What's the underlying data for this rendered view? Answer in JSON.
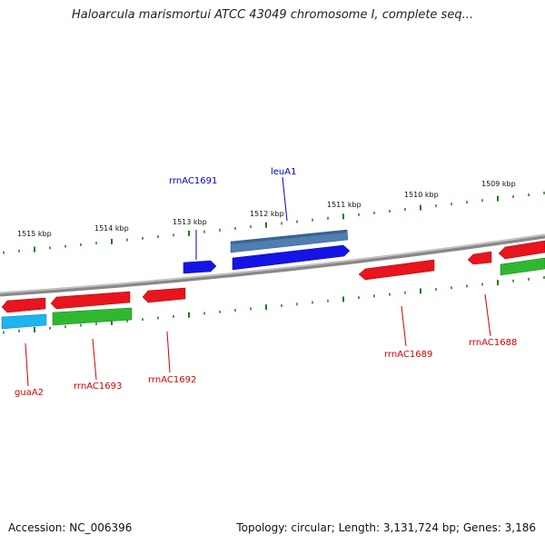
{
  "title": "Haloarcula marismortui ATCC 43049 chromosome I, complete seq...",
  "footer": {
    "accession": "Accession: NC_006396",
    "summary": "Topology: circular; Length: 3,131,724 bp; Genes: 3,186"
  },
  "colors": {
    "backbone": "#7a7a7a",
    "tick": "#1e7a1e",
    "label_red": "#d40000",
    "label_blue": "#0000cc",
    "gene_red": "#e8141e",
    "gene_green": "#2fb82f",
    "gene_blue": "#1414e6",
    "gene_steel": "#4f7fb0",
    "gene_cyan": "#1eb4f0"
  },
  "scale_labels": [
    "1515 kbp",
    "1514 kbp",
    "1513 kbp",
    "1512 kbp",
    "1511 kbp",
    "1510 kbp",
    "1509 kbp"
  ],
  "genes": [
    {
      "label": "rrnAC1691",
      "strand": "+",
      "color": "blue"
    },
    {
      "label": "leuA1",
      "strand": "+",
      "color": "blue"
    },
    {
      "label": "guaA2",
      "strand": "-",
      "color": "red"
    },
    {
      "label": "rrnAC1693",
      "strand": "-",
      "color": "red"
    },
    {
      "label": "rrnAC1692",
      "strand": "-",
      "color": "red"
    },
    {
      "label": "rrnAC1689",
      "strand": "-",
      "color": "red"
    },
    {
      "label": "rrnAC1688",
      "strand": "-",
      "color": "red"
    }
  ]
}
